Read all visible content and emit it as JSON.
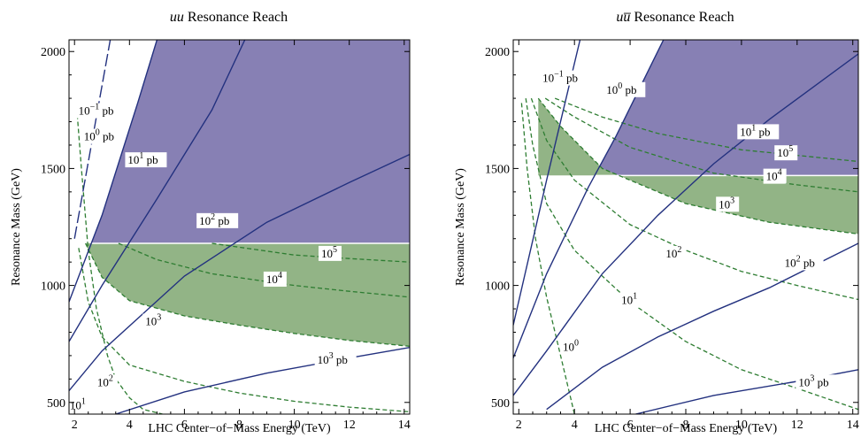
{
  "colors": {
    "sigma_line": "#23317f",
    "event_line": "#2e7d32",
    "purple_region": "#8780b4",
    "green_region": "#92b486",
    "frame": "#000000"
  },
  "chart_data": [
    {
      "type": "area",
      "title_parts": [
        "uu",
        " Resonance Reach"
      ],
      "xlabel": "LHC Center−of−Mass Energy (TeV)",
      "ylabel": "Resonance Mass (GeV)",
      "xlim": [
        1.8,
        14.2
      ],
      "ylim": [
        450,
        2050
      ],
      "xticks": [
        2,
        4,
        6,
        8,
        10,
        12,
        14
      ],
      "yticks": [
        500,
        1000,
        1500,
        2000
      ],
      "grid": false,
      "legend": "none",
      "cross_section_contours": [
        {
          "label": "10⁻¹ pb",
          "dashed": true,
          "points": [
            [
              2.0,
              1200
            ],
            [
              3.3,
              2050
            ]
          ]
        },
        {
          "label": "10⁰ pb",
          "points": [
            [
              1.8,
              930
            ],
            [
              3.0,
              1300
            ],
            [
              4.3,
              1780
            ],
            [
              5.0,
              2050
            ]
          ]
        },
        {
          "label": "10¹ pb",
          "points": [
            [
              1.8,
              760
            ],
            [
              3.0,
              1000
            ],
            [
              5.0,
              1370
            ],
            [
              7.0,
              1750
            ],
            [
              8.2,
              2050
            ]
          ]
        },
        {
          "label": "10² pb",
          "points": [
            [
              1.8,
              550
            ],
            [
              3.0,
              720
            ],
            [
              6.0,
              1040
            ],
            [
              9.0,
              1270
            ],
            [
              12.0,
              1440
            ],
            [
              14.2,
              1560
            ]
          ]
        },
        {
          "label": "10³ pb",
          "points": [
            [
              3.5,
              450
            ],
            [
              6.0,
              545
            ],
            [
              9.0,
              625
            ],
            [
              12.0,
              690
            ],
            [
              14.2,
              735
            ]
          ]
        }
      ],
      "event_count_contours": [
        {
          "label": "10¹",
          "points": [
            [
              2.1,
              1730
            ],
            [
              2.25,
              1500
            ],
            [
              2.5,
              1150
            ],
            [
              2.8,
              900
            ],
            [
              3.2,
              700
            ],
            [
              3.5,
              600
            ],
            [
              4.0,
              520
            ],
            [
              4.5,
              470
            ],
            [
              5.2,
              450
            ]
          ]
        },
        {
          "label": "10²",
          "points": [
            [
              2.15,
              1160
            ],
            [
              2.5,
              930
            ],
            [
              3.0,
              780
            ],
            [
              4.0,
              660
            ],
            [
              6.0,
              590
            ],
            [
              8.0,
              540
            ],
            [
              10.0,
              505
            ],
            [
              12.0,
              480
            ],
            [
              14.2,
              460
            ]
          ]
        },
        {
          "label": "10³",
          "points": [
            [
              2.4,
              1180
            ],
            [
              3.0,
              1035
            ],
            [
              4.0,
              935
            ],
            [
              6.0,
              870
            ],
            [
              8.0,
              830
            ],
            [
              10.0,
              795
            ],
            [
              12.0,
              765
            ],
            [
              14.2,
              740
            ]
          ]
        },
        {
          "label": "10⁴",
          "points": [
            [
              3.6,
              1180
            ],
            [
              5.0,
              1110
            ],
            [
              7.0,
              1050
            ],
            [
              10.0,
              1000
            ],
            [
              12.0,
              975
            ],
            [
              14.2,
              950
            ]
          ]
        },
        {
          "label": "10⁵",
          "points": [
            [
              7.0,
              1180
            ],
            [
              10.0,
              1130
            ],
            [
              12.0,
              1115
            ],
            [
              14.2,
              1100
            ]
          ]
        }
      ],
      "discovery_mass_limit": 1180,
      "regions": [
        "purple: above 1180 GeV and 10⁰ pb contour",
        "green: between 10³ events contour and 1180 GeV"
      ]
    },
    {
      "type": "area",
      "title_parts": [
        "u",
        "u̅",
        " Resonance Reach"
      ],
      "xlabel": "LHC Center−of−Mass Energy (TeV)",
      "ylabel": "Resonance Mass (GeV)",
      "xlim": [
        1.8,
        14.2
      ],
      "ylim": [
        450,
        2050
      ],
      "xticks": [
        2,
        4,
        6,
        8,
        10,
        12,
        14
      ],
      "yticks": [
        500,
        1000,
        1500,
        2000
      ],
      "grid": false,
      "legend": "none",
      "cross_section_contours": [
        {
          "label": "10⁻¹ pb",
          "points": [
            [
              1.8,
              830
            ],
            [
              3.0,
              1450
            ],
            [
              4.2,
              2050
            ]
          ]
        },
        {
          "label": "10⁰ pb",
          "points": [
            [
              1.8,
              690
            ],
            [
              3.0,
              1050
            ],
            [
              4.5,
              1420
            ],
            [
              5.5,
              1640
            ],
            [
              7.2,
              2050
            ]
          ]
        },
        {
          "label": "10¹ pb",
          "points": [
            [
              1.8,
              530
            ],
            [
              3.0,
              720
            ],
            [
              5.0,
              1050
            ],
            [
              7.0,
              1300
            ],
            [
              9.0,
              1520
            ],
            [
              11.0,
              1710
            ],
            [
              14.2,
              1990
            ]
          ]
        },
        {
          "label": "10² pb",
          "points": [
            [
              3.0,
              470
            ],
            [
              5.0,
              650
            ],
            [
              7.0,
              780
            ],
            [
              9.0,
              890
            ],
            [
              11.0,
              990
            ],
            [
              14.2,
              1180
            ]
          ]
        },
        {
          "label": "10³ pb",
          "points": [
            [
              6.2,
              450
            ],
            [
              9.0,
              530
            ],
            [
              12.0,
              590
            ],
            [
              14.2,
              640
            ]
          ]
        }
      ],
      "event_count_contours": [
        {
          "label": "10⁰",
          "points": [
            [
              2.1,
              1780
            ],
            [
              2.3,
              1500
            ],
            [
              2.6,
              1200
            ],
            [
              3.0,
              950
            ],
            [
              3.5,
              700
            ],
            [
              4.0,
              450
            ]
          ]
        },
        {
          "label": "10¹",
          "points": [
            [
              2.25,
              1800
            ],
            [
              2.5,
              1600
            ],
            [
              3.0,
              1350
            ],
            [
              4.0,
              1150
            ],
            [
              6.0,
              930
            ],
            [
              8.0,
              760
            ],
            [
              10.0,
              640
            ],
            [
              12.0,
              560
            ],
            [
              14.2,
              470
            ]
          ]
        },
        {
          "label": "10²",
          "points": [
            [
              2.45,
              1800
            ],
            [
              3.0,
              1620
            ],
            [
              4.0,
              1450
            ],
            [
              6.0,
              1260
            ],
            [
              8.0,
              1150
            ],
            [
              10.0,
              1060
            ],
            [
              12.0,
              1000
            ],
            [
              14.2,
              940
            ]
          ]
        },
        {
          "label": "10³",
          "points": [
            [
              2.7,
              1800
            ],
            [
              3.5,
              1680
            ],
            [
              5.0,
              1500
            ],
            [
              8.0,
              1350
            ],
            [
              11.0,
              1270
            ],
            [
              14.2,
              1220
            ]
          ]
        },
        {
          "label": "10⁴",
          "points": [
            [
              2.95,
              1800
            ],
            [
              4.0,
              1720
            ],
            [
              6.0,
              1590
            ],
            [
              9.0,
              1480
            ],
            [
              12.0,
              1430
            ],
            [
              14.2,
              1400
            ]
          ]
        },
        {
          "label": "10⁵",
          "points": [
            [
              3.3,
              1800
            ],
            [
              5.0,
              1720
            ],
            [
              7.0,
              1650
            ],
            [
              10.0,
              1580
            ],
            [
              14.2,
              1530
            ]
          ]
        }
      ],
      "discovery_mass_limit": 1470,
      "regions": [
        "purple: above 1470 GeV and 10⁰ pb contour",
        "green: between 10³ events contour and 1470 GeV"
      ]
    }
  ]
}
